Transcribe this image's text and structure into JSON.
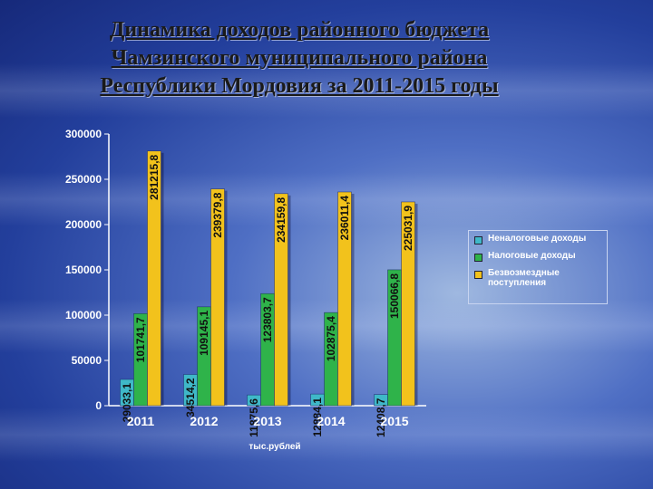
{
  "title_lines": [
    "Динамика доходов районного бюджета",
    "Чамзинского муниципального района",
    "Республики Мордовия за 2011-2015 годы"
  ],
  "chart_data": {
    "type": "bar",
    "categories": [
      "2011",
      "2012",
      "2013",
      "2014",
      "2015"
    ],
    "series": [
      {
        "name": "Неналоговые доходы",
        "color": "#3fb8c8",
        "values": [
          29033.1,
          34514.2,
          11875.6,
          12884.1,
          12408.7
        ],
        "labels": [
          "29033,1",
          "34514,2",
          "11875,6",
          "12884,1",
          "12408,7"
        ]
      },
      {
        "name": "Налоговые доходы",
        "color": "#2fb34a",
        "values": [
          101741.7,
          109145.1,
          123803.7,
          102875.4,
          150066.8
        ],
        "labels": [
          "101741,7",
          "109145,1",
          "123803,7",
          "102875,4",
          "150066,8"
        ]
      },
      {
        "name": "Безвозмездные поступления",
        "color": "#f2c21c",
        "values": [
          281215.8,
          239379.8,
          234159.8,
          236011.4,
          225031.9
        ],
        "labels": [
          "281215,8",
          "239379,8",
          "234159,8",
          "236011,4",
          "225031,9"
        ]
      }
    ],
    "yticks": [
      "300000",
      "250000",
      "200000",
      "150000",
      "100000",
      "50000",
      "0"
    ],
    "ylim": [
      0,
      300000
    ],
    "xlabel": "тыс.рублей",
    "ylabel": "",
    "legend_position": "right",
    "grid": false
  }
}
